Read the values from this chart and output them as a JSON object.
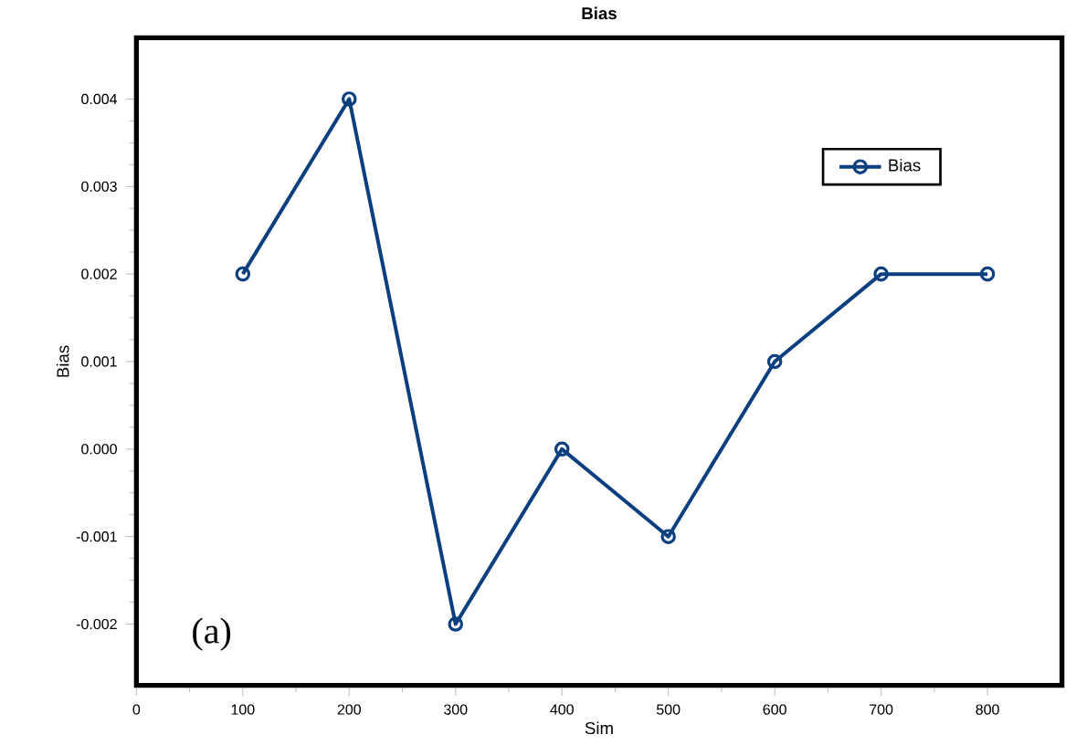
{
  "chart_data": {
    "type": "line",
    "title": "Bias",
    "xlabel": "Sim",
    "ylabel": "Bias",
    "x": [
      100,
      200,
      300,
      400,
      500,
      600,
      700,
      800
    ],
    "series": [
      {
        "name": "Bias",
        "color": "#0b3f7f",
        "values": [
          0.002,
          0.004,
          -0.002,
          0,
          -0.001,
          0.001,
          0.002,
          0.002
        ]
      }
    ],
    "xlim": [
      0,
      870
    ],
    "xticks": [
      0,
      100,
      200,
      300,
      400,
      500,
      600,
      700,
      800
    ],
    "ylim": [
      -0.0027,
      0.0047
    ],
    "yticks": [
      {
        "value": -0.002,
        "label": "-0.002"
      },
      {
        "value": -0.001,
        "label": "-0.001"
      },
      {
        "value": 0,
        "label": "0.000"
      },
      {
        "value": 0.001,
        "label": "0.001"
      },
      {
        "value": 0.002,
        "label": "0.002"
      },
      {
        "value": 0.003,
        "label": "0.003"
      },
      {
        "value": 0.004,
        "label": "0.004"
      }
    ],
    "marker": "circle",
    "line_style": "solid",
    "legend": "top right",
    "grid": false,
    "annotations": [
      "(a)"
    ]
  }
}
